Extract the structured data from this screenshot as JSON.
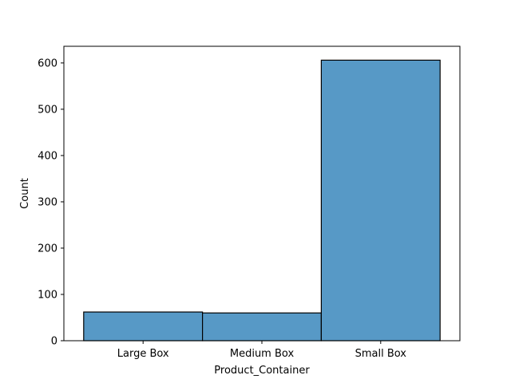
{
  "chart_data": {
    "type": "bar",
    "categories": [
      "Large Box",
      "Medium Box",
      "Small Box"
    ],
    "values": [
      62,
      60,
      606
    ],
    "xlabel": "Product_Container",
    "ylabel": "Count",
    "ylim": [
      0,
      636
    ],
    "yticks": [
      0,
      100,
      200,
      300,
      400,
      500,
      600
    ],
    "grid": false,
    "bar_color": "#5799c6",
    "edge_color": "#000000"
  }
}
